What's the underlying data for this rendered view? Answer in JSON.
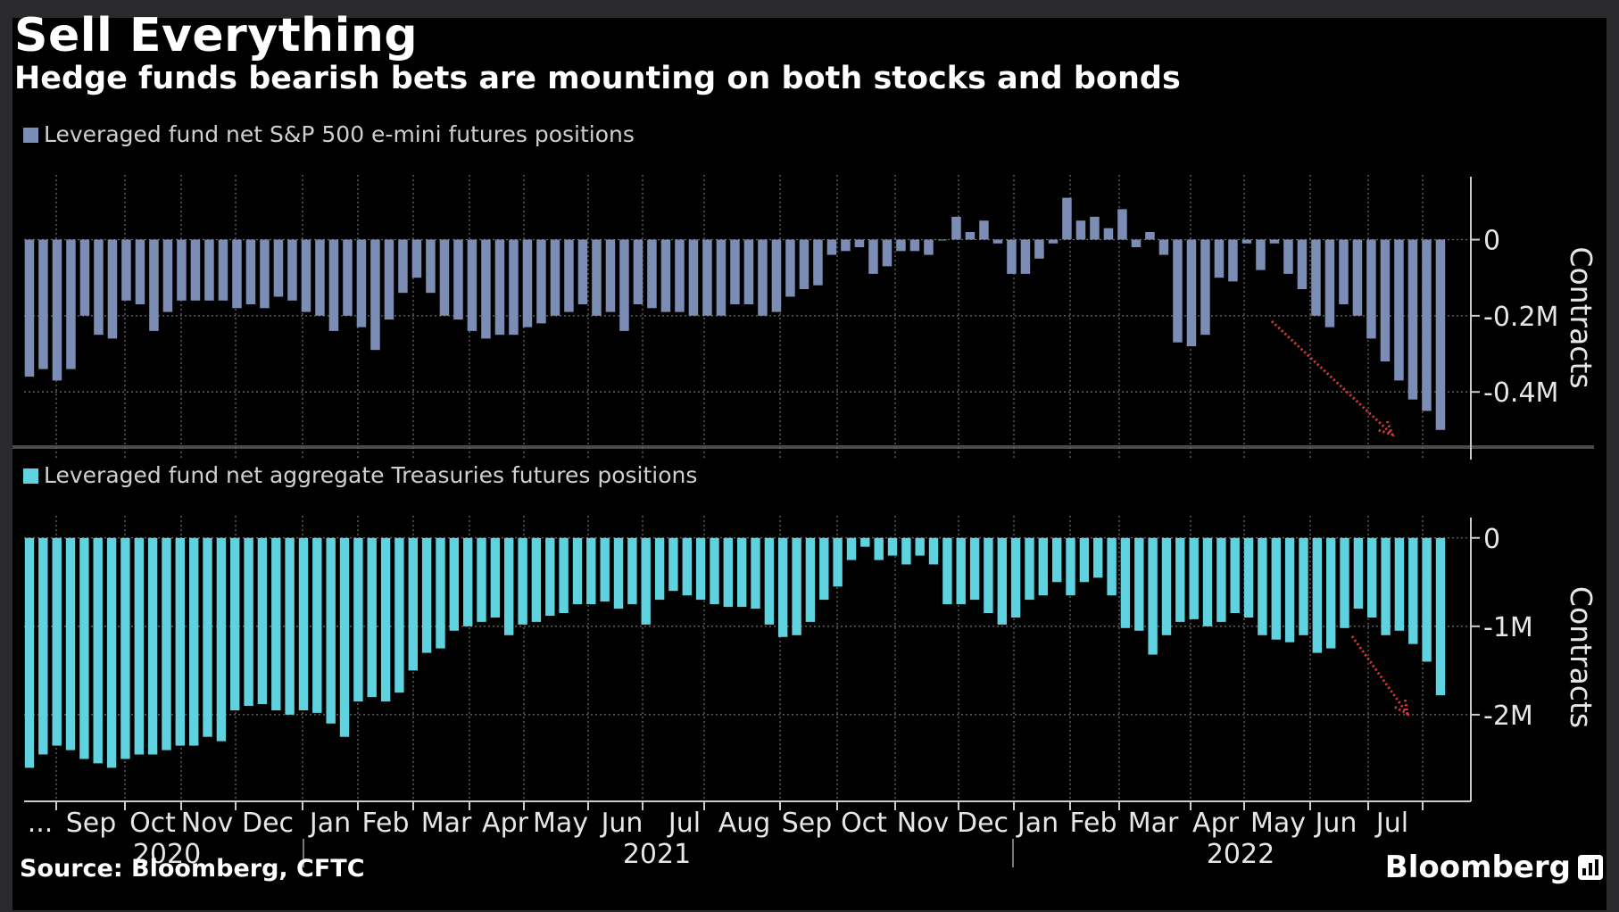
{
  "title": "Sell Everything",
  "subtitle": "Hedge funds bearish bets are mounting on both stocks and bonds",
  "source": "Source: Bloomberg, CFTC",
  "brand": "Bloomberg",
  "colors": {
    "sp500": "#7b8cb5",
    "treasuries": "#5ed2de",
    "arrow": "#e03a3a",
    "grid": "#6a6a6a",
    "text": "#e6e6e6"
  },
  "x_axis": {
    "month_labels": [
      "...",
      "Sep",
      "Oct",
      "Nov",
      "Dec",
      "Jan",
      "Feb",
      "Mar",
      "Apr",
      "May",
      "Jun",
      "Jul",
      "Aug",
      "Sep",
      "Oct",
      "Nov",
      "Dec",
      "Jan",
      "Feb",
      "Mar",
      "Apr",
      "May",
      "Jun",
      "Jul"
    ],
    "year_labels": [
      "2020",
      "2021",
      "2022"
    ]
  },
  "chart_data": [
    {
      "type": "bar",
      "legend": "Leveraged fund net S&P 500 e-mini futures positions",
      "ylabel": "Contracts",
      "y_ticks": [
        "0",
        "-0.2M",
        "-0.4M"
      ],
      "y_tick_values": [
        0,
        -0.2,
        -0.4
      ],
      "ylim": [
        -0.58,
        0.17
      ],
      "unit": "million contracts",
      "x_start": "Aug 2020",
      "x_end": "Jul 2022",
      "frequency": "weekly",
      "values": [
        -0.36,
        -0.34,
        -0.37,
        -0.34,
        -0.2,
        -0.25,
        -0.26,
        -0.16,
        -0.17,
        -0.24,
        -0.19,
        -0.16,
        -0.16,
        -0.16,
        -0.16,
        -0.18,
        -0.17,
        -0.18,
        -0.15,
        -0.16,
        -0.19,
        -0.2,
        -0.24,
        -0.2,
        -0.23,
        -0.29,
        -0.21,
        -0.14,
        -0.1,
        -0.14,
        -0.2,
        -0.21,
        -0.24,
        -0.26,
        -0.25,
        -0.25,
        -0.23,
        -0.22,
        -0.2,
        -0.19,
        -0.17,
        -0.2,
        -0.19,
        -0.24,
        -0.17,
        -0.18,
        -0.19,
        -0.19,
        -0.2,
        -0.2,
        -0.2,
        -0.17,
        -0.17,
        -0.2,
        -0.19,
        -0.15,
        -0.13,
        -0.12,
        -0.04,
        -0.03,
        -0.02,
        -0.09,
        -0.07,
        -0.03,
        -0.03,
        -0.04,
        0.0,
        0.06,
        0.02,
        0.05,
        -0.01,
        -0.09,
        -0.09,
        -0.05,
        -0.01,
        0.11,
        0.05,
        0.06,
        0.03,
        0.08,
        -0.02,
        0.02,
        -0.04,
        -0.27,
        -0.28,
        -0.25,
        -0.1,
        -0.11,
        -0.01,
        -0.08,
        -0.01,
        -0.09,
        -0.13,
        -0.2,
        -0.23,
        -0.17,
        -0.2,
        -0.26,
        -0.32,
        -0.37,
        -0.42,
        -0.45,
        -0.5
      ]
    },
    {
      "type": "bar",
      "legend": "Leveraged fund net aggregate Treasuries futures positions",
      "ylabel": "Contracts",
      "y_ticks": [
        "0",
        "-1M",
        "-2M"
      ],
      "y_tick_values": [
        0,
        -1,
        -2
      ],
      "ylim": [
        -2.95,
        0.25
      ],
      "unit": "million contracts",
      "x_start": "Aug 2020",
      "x_end": "Jul 2022",
      "frequency": "weekly",
      "values": [
        -2.6,
        -2.45,
        -2.35,
        -2.4,
        -2.5,
        -2.55,
        -2.6,
        -2.5,
        -2.45,
        -2.45,
        -2.4,
        -2.35,
        -2.35,
        -2.25,
        -2.3,
        -1.95,
        -1.9,
        -1.88,
        -1.95,
        -2.0,
        -1.95,
        -1.98,
        -2.1,
        -2.25,
        -1.85,
        -1.8,
        -1.85,
        -1.75,
        -1.5,
        -1.3,
        -1.25,
        -1.05,
        -1.0,
        -0.95,
        -0.9,
        -1.1,
        -0.98,
        -0.95,
        -0.88,
        -0.85,
        -0.75,
        -0.75,
        -0.72,
        -0.8,
        -0.75,
        -0.98,
        -0.7,
        -0.6,
        -0.65,
        -0.7,
        -0.75,
        -0.78,
        -0.78,
        -0.8,
        -0.98,
        -1.12,
        -1.1,
        -0.95,
        -0.7,
        -0.55,
        -0.25,
        -0.1,
        -0.25,
        -0.2,
        -0.3,
        -0.2,
        -0.3,
        -0.75,
        -0.75,
        -0.7,
        -0.85,
        -0.98,
        -0.9,
        -0.7,
        -0.65,
        -0.5,
        -0.65,
        -0.5,
        -0.45,
        -0.65,
        -1.02,
        -1.05,
        -1.32,
        -1.1,
        -0.95,
        -0.92,
        -1.0,
        -0.95,
        -0.85,
        -0.9,
        -1.1,
        -1.15,
        -1.18,
        -1.1,
        -1.3,
        -1.25,
        -1.02,
        -0.8,
        -0.9,
        -1.1,
        -1.05,
        -1.2,
        -1.4,
        -1.78
      ]
    }
  ]
}
